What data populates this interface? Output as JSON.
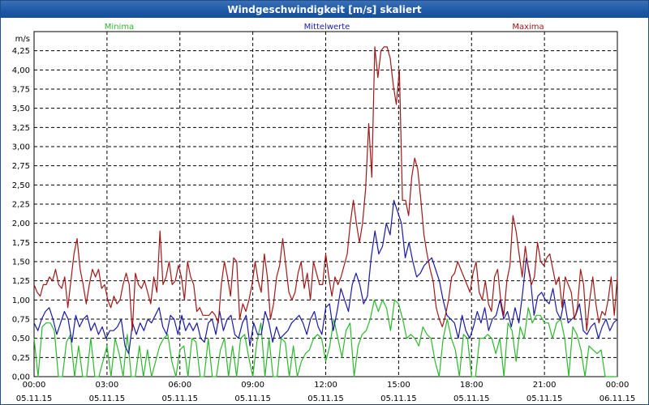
{
  "window": {
    "title": "Windgeschwindigkeit [m/s] skaliert"
  },
  "chart_data": {
    "type": "line",
    "title": "Windgeschwindigkeit [m/s] skaliert",
    "ylabel": "m/s",
    "xlabel": "",
    "ylim": [
      0,
      4.5
    ],
    "xlim": [
      0,
      24
    ],
    "grid": true,
    "y_ticks": [
      "0,00",
      "0,25",
      "0,50",
      "0,75",
      "1,00",
      "1,25",
      "1,50",
      "1,75",
      "2,00",
      "2,25",
      "2,50",
      "2,75",
      "3,00",
      "3,25",
      "3,50",
      "3,75",
      "4,00",
      "4,25"
    ],
    "x_ticks": [
      {
        "time": "00:00",
        "date": "05.11.15"
      },
      {
        "time": "03:00",
        "date": "05.11.15"
      },
      {
        "time": "06:00",
        "date": "05.11.15"
      },
      {
        "time": "09:00",
        "date": "05.11.15"
      },
      {
        "time": "12:00",
        "date": "05.11.15"
      },
      {
        "time": "15:00",
        "date": "05.11.15"
      },
      {
        "time": "18:00",
        "date": "05.11.15"
      },
      {
        "time": "21:00",
        "date": "05.11.15"
      },
      {
        "time": "00:00",
        "date": "06.11.15"
      }
    ],
    "series": [
      {
        "name": "Minima",
        "color": "#2db82d",
        "values": [
          0.5,
          0.0,
          0.65,
          0.7,
          0.7,
          0.6,
          0.0,
          0.0,
          0.45,
          0.55,
          0.0,
          0.4,
          0.0,
          0.0,
          0.5,
          0.0,
          0.0,
          0.2,
          0.4,
          0.0,
          0.5,
          0.3,
          0.0,
          0.55,
          0.0,
          0.0,
          0.4,
          0.0,
          0.35,
          0.0,
          0.2,
          0.4,
          0.5,
          0.55,
          0.2,
          0.0,
          0.35,
          0.4,
          0.0,
          0.5,
          0.45,
          0.0,
          0.0,
          0.5,
          0.0,
          0.0,
          0.35,
          0.5,
          0.0,
          0.4,
          0.0,
          0.5,
          0.55,
          0.25,
          0.0,
          0.45,
          0.7,
          0.0,
          0.5,
          0.0,
          0.0,
          0.5,
          0.45,
          0.0,
          0.4,
          0.0,
          0.2,
          0.3,
          0.35,
          0.5,
          0.55,
          0.5,
          0.2,
          0.4,
          0.75,
          0.5,
          0.25,
          0.6,
          0.7,
          0.0,
          0.4,
          0.55,
          0.6,
          0.75,
          1.0,
          0.85,
          1.0,
          0.9,
          0.6,
          1.0,
          0.95,
          0.75,
          0.5,
          0.55,
          0.5,
          0.4,
          0.65,
          0.55,
          0.5,
          0.2,
          0.0,
          0.5,
          0.75,
          0.5,
          0.35,
          0.0,
          0.55,
          0.5,
          0.0,
          0.0,
          0.5,
          0.5,
          0.55,
          0.5,
          0.3,
          0.5,
          0.0,
          0.7,
          0.6,
          0.2,
          0.65,
          0.5,
          0.9,
          0.7,
          0.8,
          0.8,
          0.7,
          0.7,
          0.5,
          0.7,
          0.75,
          0.5,
          0.0,
          0.65,
          0.55,
          0.35,
          0.0,
          0.4,
          0.35,
          0.3,
          0.35,
          0.0,
          0.0,
          0.0,
          0.0
        ]
      },
      {
        "name": "Mittelwerte",
        "color": "#1a1aa6",
        "values": [
          0.7,
          0.6,
          0.75,
          0.85,
          0.9,
          0.75,
          0.55,
          0.7,
          0.85,
          0.75,
          0.45,
          0.8,
          0.65,
          0.75,
          0.8,
          0.6,
          0.7,
          0.55,
          0.65,
          0.5,
          0.6,
          0.6,
          0.65,
          0.75,
          0.4,
          0.3,
          0.7,
          0.55,
          0.7,
          0.6,
          0.75,
          0.7,
          0.8,
          0.9,
          0.65,
          0.55,
          0.8,
          0.75,
          0.55,
          0.8,
          0.6,
          0.7,
          0.6,
          0.7,
          0.5,
          0.45,
          0.7,
          0.75,
          0.55,
          0.85,
          0.6,
          0.75,
          0.8,
          0.55,
          0.5,
          0.7,
          0.8,
          0.4,
          0.7,
          0.55,
          0.55,
          0.85,
          0.7,
          0.45,
          0.65,
          0.5,
          0.55,
          0.6,
          0.7,
          0.75,
          0.8,
          0.7,
          0.55,
          0.75,
          0.85,
          0.65,
          0.55,
          0.9,
          0.95,
          0.6,
          0.85,
          1.15,
          1.0,
          0.85,
          1.2,
          1.35,
          1.2,
          0.95,
          1.05,
          1.55,
          1.9,
          1.6,
          1.7,
          2.0,
          1.85,
          2.3,
          2.15,
          2.0,
          1.55,
          1.75,
          1.5,
          1.3,
          1.35,
          1.45,
          1.5,
          1.55,
          1.4,
          1.25,
          1.0,
          0.8,
          0.75,
          0.7,
          0.5,
          0.8,
          0.6,
          0.5,
          0.65,
          0.85,
          0.7,
          0.9,
          0.6,
          0.75,
          0.8,
          1.0,
          0.75,
          0.85,
          0.65,
          0.9,
          0.7,
          1.1,
          1.55,
          1.3,
          0.8,
          1.05,
          1.1,
          1.0,
          0.95,
          1.15,
          0.85,
          0.75,
          1.0,
          0.7,
          0.75,
          0.8,
          0.95,
          0.6,
          0.55,
          0.65,
          0.7,
          0.5,
          0.65,
          0.75,
          0.6,
          0.7,
          0.75
        ]
      },
      {
        "name": "Maxima",
        "color": "#a01818",
        "values": [
          1.2,
          1.1,
          1.05,
          1.2,
          1.2,
          1.3,
          1.25,
          1.4,
          1.2,
          1.15,
          1.3,
          0.9,
          1.25,
          1.6,
          1.8,
          1.4,
          1.2,
          0.95,
          1.2,
          1.4,
          1.3,
          1.4,
          1.15,
          1.2,
          1.0,
          0.9,
          1.05,
          0.95,
          1.0,
          1.2,
          1.35,
          1.2,
          0.6,
          1.35,
          1.2,
          1.15,
          1.25,
          1.1,
          0.95,
          1.3,
          1.1,
          1.9,
          1.2,
          1.3,
          1.5,
          1.2,
          1.25,
          1.45,
          1.3,
          1.0,
          1.5,
          1.3,
          1.2,
          0.85,
          0.9,
          0.8,
          0.8,
          0.8,
          0.85,
          0.8,
          0.7,
          1.2,
          1.5,
          1.3,
          1.05,
          1.55,
          1.5,
          0.75,
          0.95,
          0.85,
          1.0,
          1.2,
          1.5,
          1.25,
          1.1,
          1.6,
          1.3,
          0.75,
          0.95,
          1.3,
          1.45,
          1.8,
          1.45,
          1.1,
          1.0,
          1.1,
          1.35,
          1.5,
          1.15,
          1.35,
          1.0,
          1.5,
          1.35,
          1.2,
          1.2,
          1.6,
          1.3,
          1.05,
          1.3,
          1.2,
          1.3,
          1.45,
          1.6,
          2.0,
          2.3,
          2.0,
          1.75,
          2.0,
          2.45,
          3.3,
          2.6,
          4.3,
          3.9,
          4.25,
          4.3,
          4.3,
          4.15,
          3.8,
          3.55,
          4.0,
          2.3,
          2.3,
          2.1,
          2.6,
          2.85,
          2.7,
          2.3,
          1.85,
          1.6,
          1.4,
          1.25,
          0.9,
          0.75,
          0.65,
          0.8,
          1.0,
          1.3,
          1.35,
          1.5,
          1.4,
          1.3,
          1.2,
          1.1,
          1.35,
          1.5,
          1.1,
          1.0,
          1.25,
          0.95,
          0.85,
          1.3,
          1.4,
          1.0,
          0.8,
          1.25,
          1.45,
          2.1,
          1.9,
          1.6,
          1.3,
          1.7,
          1.4,
          1.2,
          1.3,
          1.75,
          1.5,
          1.45,
          1.55,
          1.6,
          1.4,
          1.2,
          1.3,
          0.9,
          1.3,
          1.2,
          1.1,
          0.75,
          0.9,
          1.4,
          1.2,
          0.6,
          1.0,
          1.3,
          0.95,
          0.7,
          0.85,
          0.8,
          1.0,
          1.3,
          0.8,
          1.3
        ]
      }
    ]
  }
}
